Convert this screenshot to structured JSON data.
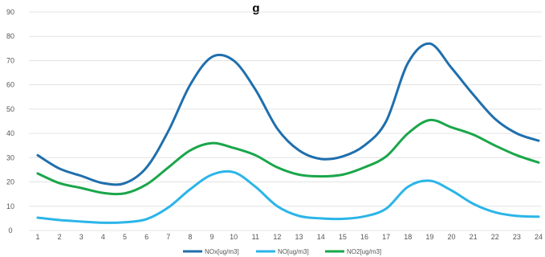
{
  "chart_data": {
    "type": "line",
    "title": "g",
    "x": [
      1,
      2,
      3,
      4,
      5,
      6,
      7,
      8,
      9,
      10,
      11,
      12,
      13,
      14,
      15,
      16,
      17,
      18,
      19,
      20,
      21,
      22,
      23,
      24
    ],
    "ylim": [
      0,
      90
    ],
    "yticks": [
      0,
      10,
      20,
      30,
      40,
      50,
      60,
      70,
      80,
      90
    ],
    "grid": true,
    "legend_position": "bottom",
    "series": [
      {
        "name": "NOx[ug/m3]",
        "color": "#1f6fad",
        "values": [
          31,
          25.5,
          22.5,
          19.5,
          19.5,
          26,
          41,
          60,
          71.5,
          70,
          58,
          42,
          33,
          29.5,
          30.5,
          35,
          45,
          69,
          77,
          67,
          56,
          46,
          40,
          37
        ]
      },
      {
        "name": "NO[ug/m3]",
        "color": "#2bb5e8",
        "values": [
          5.3,
          4.3,
          3.7,
          3.2,
          3.4,
          4.7,
          9.5,
          17,
          23,
          24,
          18,
          10,
          6,
          5,
          4.8,
          5.8,
          9,
          18,
          20.5,
          16.5,
          11,
          7.5,
          6,
          5.7
        ]
      },
      {
        "name": "NO2[ug/m3]",
        "color": "#1aa64a",
        "values": [
          23.5,
          19.5,
          17.5,
          15.5,
          15.3,
          19,
          26,
          33,
          36,
          34,
          31,
          26,
          23,
          22.3,
          23,
          26,
          30.5,
          40,
          45.5,
          42.5,
          39.5,
          35,
          31,
          28
        ]
      }
    ]
  }
}
